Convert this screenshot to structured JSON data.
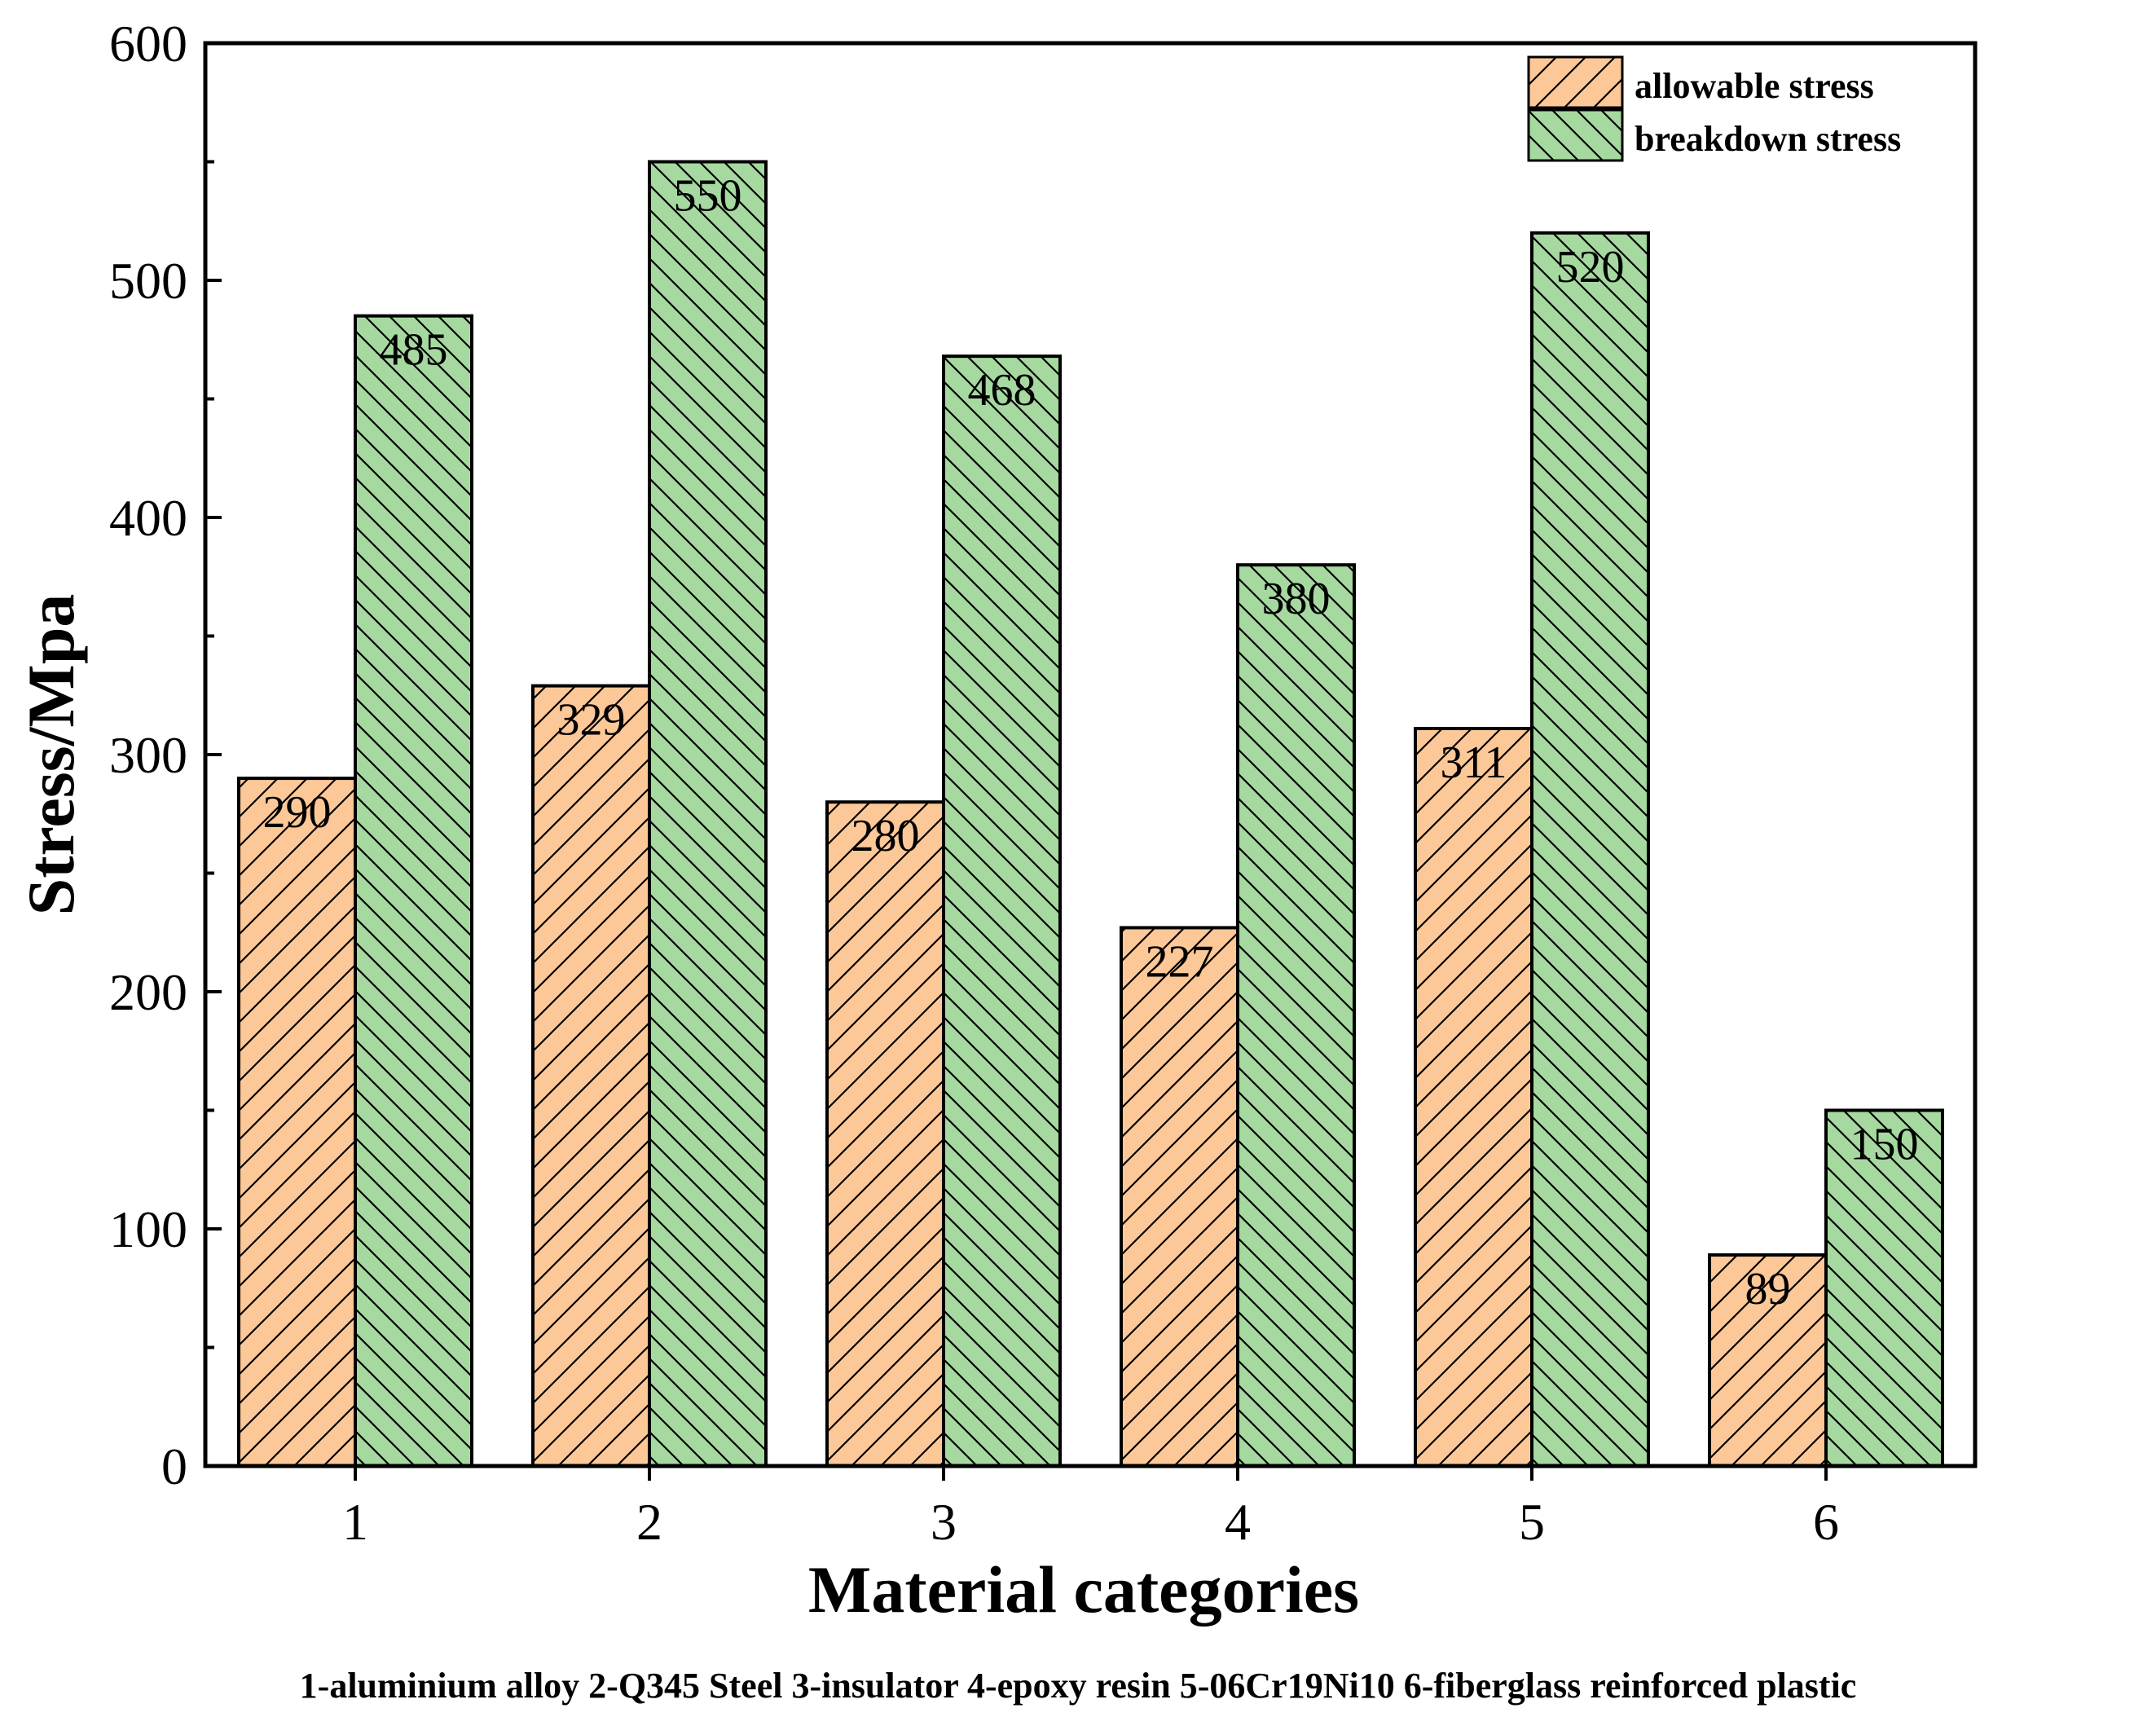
{
  "chart_data": {
    "type": "bar",
    "categories": [
      "1",
      "2",
      "3",
      "4",
      "5",
      "6"
    ],
    "series": [
      {
        "name": "allowable stress",
        "values": [
          290,
          329,
          280,
          227,
          311,
          89
        ],
        "color": "#FDC898",
        "hatch": "forward"
      },
      {
        "name": "breakdown stress",
        "values": [
          485,
          550,
          468,
          380,
          520,
          150
        ],
        "color": "#A6D9A0",
        "hatch": "backward"
      }
    ],
    "xlabel": "Material categories",
    "ylabel": "Stress/Mpa",
    "ylim": [
      0,
      600
    ],
    "yticks": [
      0,
      100,
      200,
      300,
      400,
      500,
      600
    ],
    "legend_position": "top-right",
    "caption": "1-aluminium alloy  2-Q345 Steel  3-insulator  4-epoxy resin  5-06Cr19Ni10  6-fiberglass reinforced plastic"
  }
}
